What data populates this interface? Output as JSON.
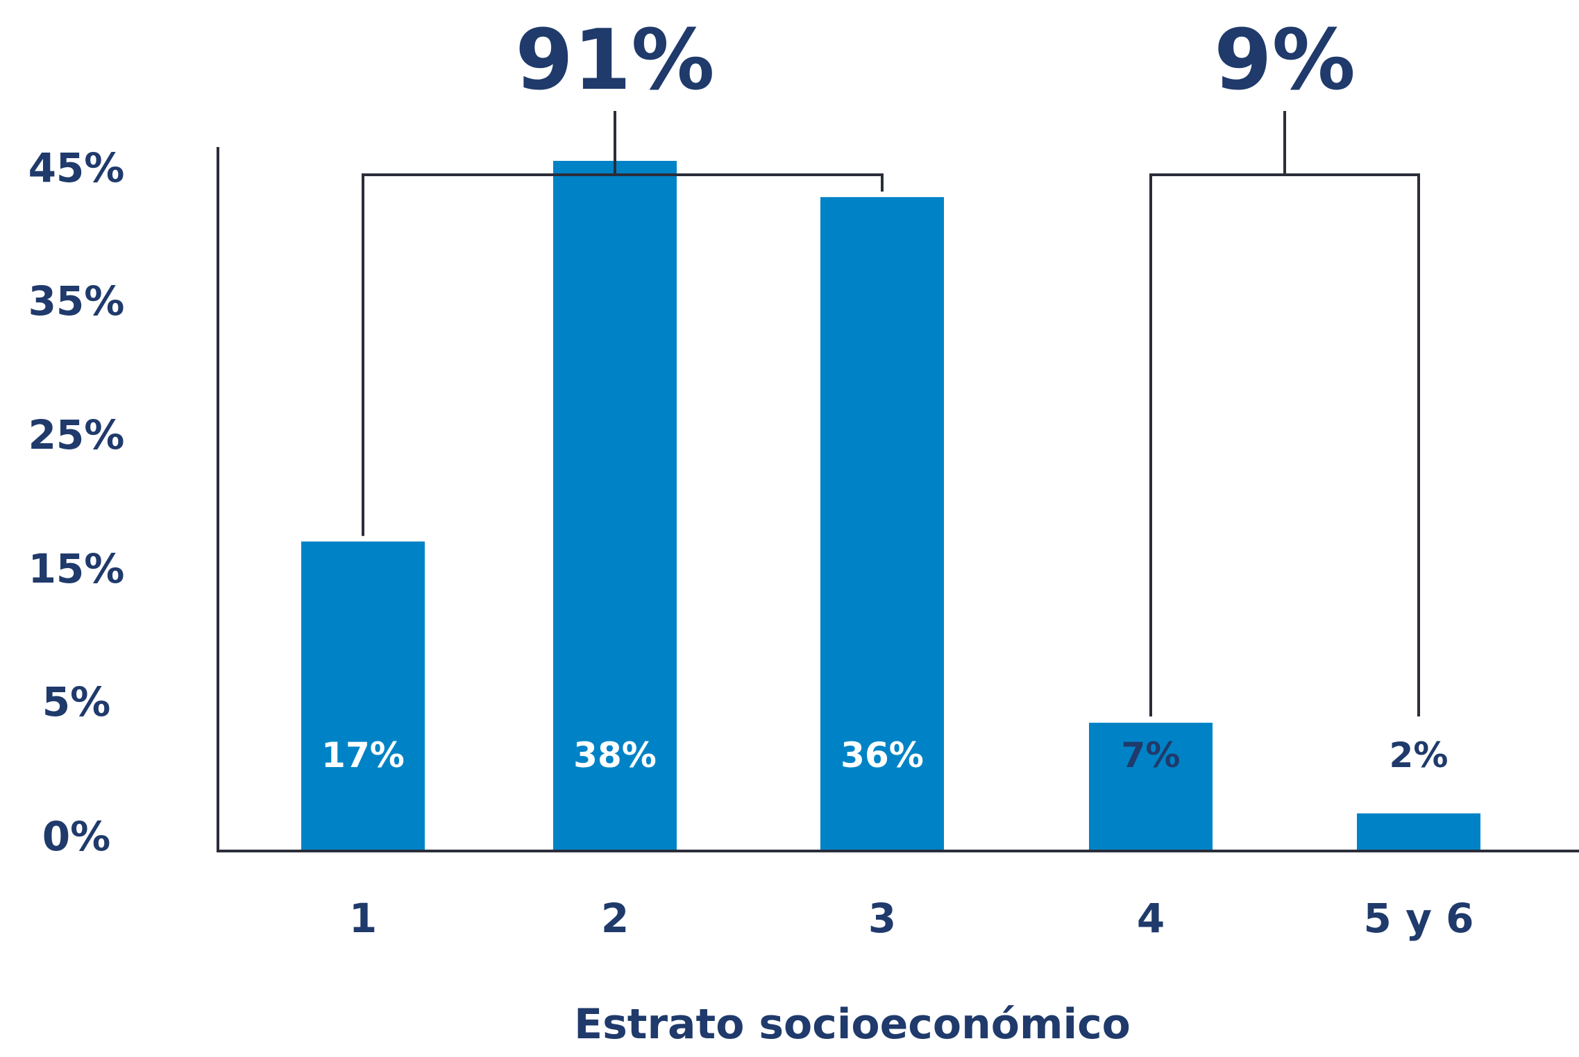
{
  "chart_data": {
    "type": "bar",
    "categories": [
      "1",
      "2",
      "3",
      "4",
      "5 y 6"
    ],
    "values": [
      17,
      38,
      36,
      7,
      2
    ],
    "data_labels": [
      "17%",
      "38%",
      "36%",
      "7%",
      "2%"
    ],
    "xlabel": "Estrato socioeconómico",
    "ylabel": "",
    "ylim": [
      0,
      45
    ],
    "yticks": [
      0,
      5,
      15,
      25,
      35,
      45
    ],
    "ytick_labels": [
      "0%",
      "5%",
      "15%",
      "25%",
      "35%",
      "45%"
    ],
    "groups": [
      {
        "label": "91%",
        "categories": [
          "1",
          "2",
          "3"
        ]
      },
      {
        "label": "9%",
        "categories": [
          "4",
          "5 y 6"
        ]
      }
    ],
    "grid": false,
    "legend": "none"
  },
  "colors": {
    "bar": "#0083c6",
    "text": "#1f3a6b",
    "axis": "#2b2d3a",
    "label_on_bar": "#ffffff"
  }
}
